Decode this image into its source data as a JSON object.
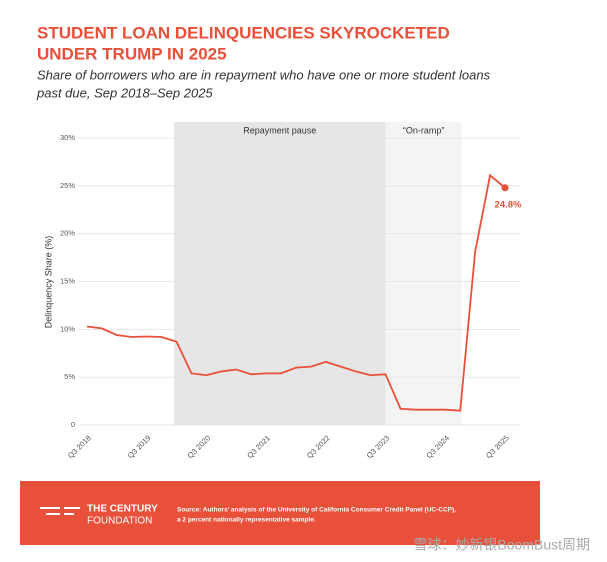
{
  "chart_data": {
    "type": "line",
    "title": [
      "STUDENT LOAN DELINQUENCIES SKYROCKETED",
      "UNDER TRUMP IN 2025"
    ],
    "subtitle": [
      "Share of borrowers who are in repayment who have one or more student loans",
      "past due, Sep 2018–Sep 2025"
    ],
    "y_label": "Delinquency Share (%)",
    "categories": [
      "Q3 2018",
      null,
      null,
      null,
      "Q3 2019",
      null,
      null,
      null,
      "Q3 2020",
      null,
      null,
      null,
      "Q3 2021",
      null,
      null,
      null,
      "Q3 2022",
      null,
      null,
      null,
      "Q3 2023",
      null,
      null,
      null,
      "Q3 2024",
      null,
      null,
      null,
      "Q3 2025"
    ],
    "series": [
      {
        "color": "#e8503a",
        "values": [
          10.3,
          10.1,
          9.4,
          9.2,
          9.25,
          9.2,
          8.7,
          5.4,
          5.2,
          5.6,
          5.8,
          5.3,
          5.4,
          5.4,
          6.0,
          6.1,
          6.6,
          6.1,
          5.6,
          5.2,
          5.3,
          1.7,
          1.6,
          1.6,
          1.6,
          1.5,
          18.1,
          26.1,
          24.8
        ],
        "value_labels": [
          null,
          null,
          null,
          null,
          null,
          null,
          null,
          null,
          null,
          null,
          null,
          null,
          null,
          null,
          null,
          null,
          null,
          null,
          null,
          null,
          null,
          null,
          null,
          null,
          null,
          null,
          null,
          null,
          "24.8%"
        ]
      }
    ],
    "ylim": [
      0,
      30
    ],
    "yticks": [
      {
        "value": 0,
        "label": "0"
      },
      {
        "value": 5,
        "label": "5%"
      },
      {
        "value": 10,
        "label": "10%"
      },
      {
        "value": 15,
        "label": "15%"
      },
      {
        "value": 20,
        "label": "20%"
      },
      {
        "value": 25,
        "label": "25%"
      },
      {
        "value": 30,
        "label": "30%"
      }
    ],
    "grid": true,
    "regions": [
      {
        "label": "Repayment pause",
        "from": 5.83,
        "to": 20,
        "color": "#e6e6e6"
      },
      {
        "label": "“On-ramp”",
        "from": 20,
        "to": 25.1,
        "color": "#f4f4f4"
      }
    ],
    "footer": {
      "logo": [
        "THE CENTURY",
        "FOUNDATION"
      ],
      "source": [
        "Source: Authors’ analysis of the University of California Consumer Credit Panel (UC-CCP),",
        "a 2 percent nationally representative sample."
      ]
    },
    "watermark": "雪球：妙新银BoomBust周期"
  }
}
